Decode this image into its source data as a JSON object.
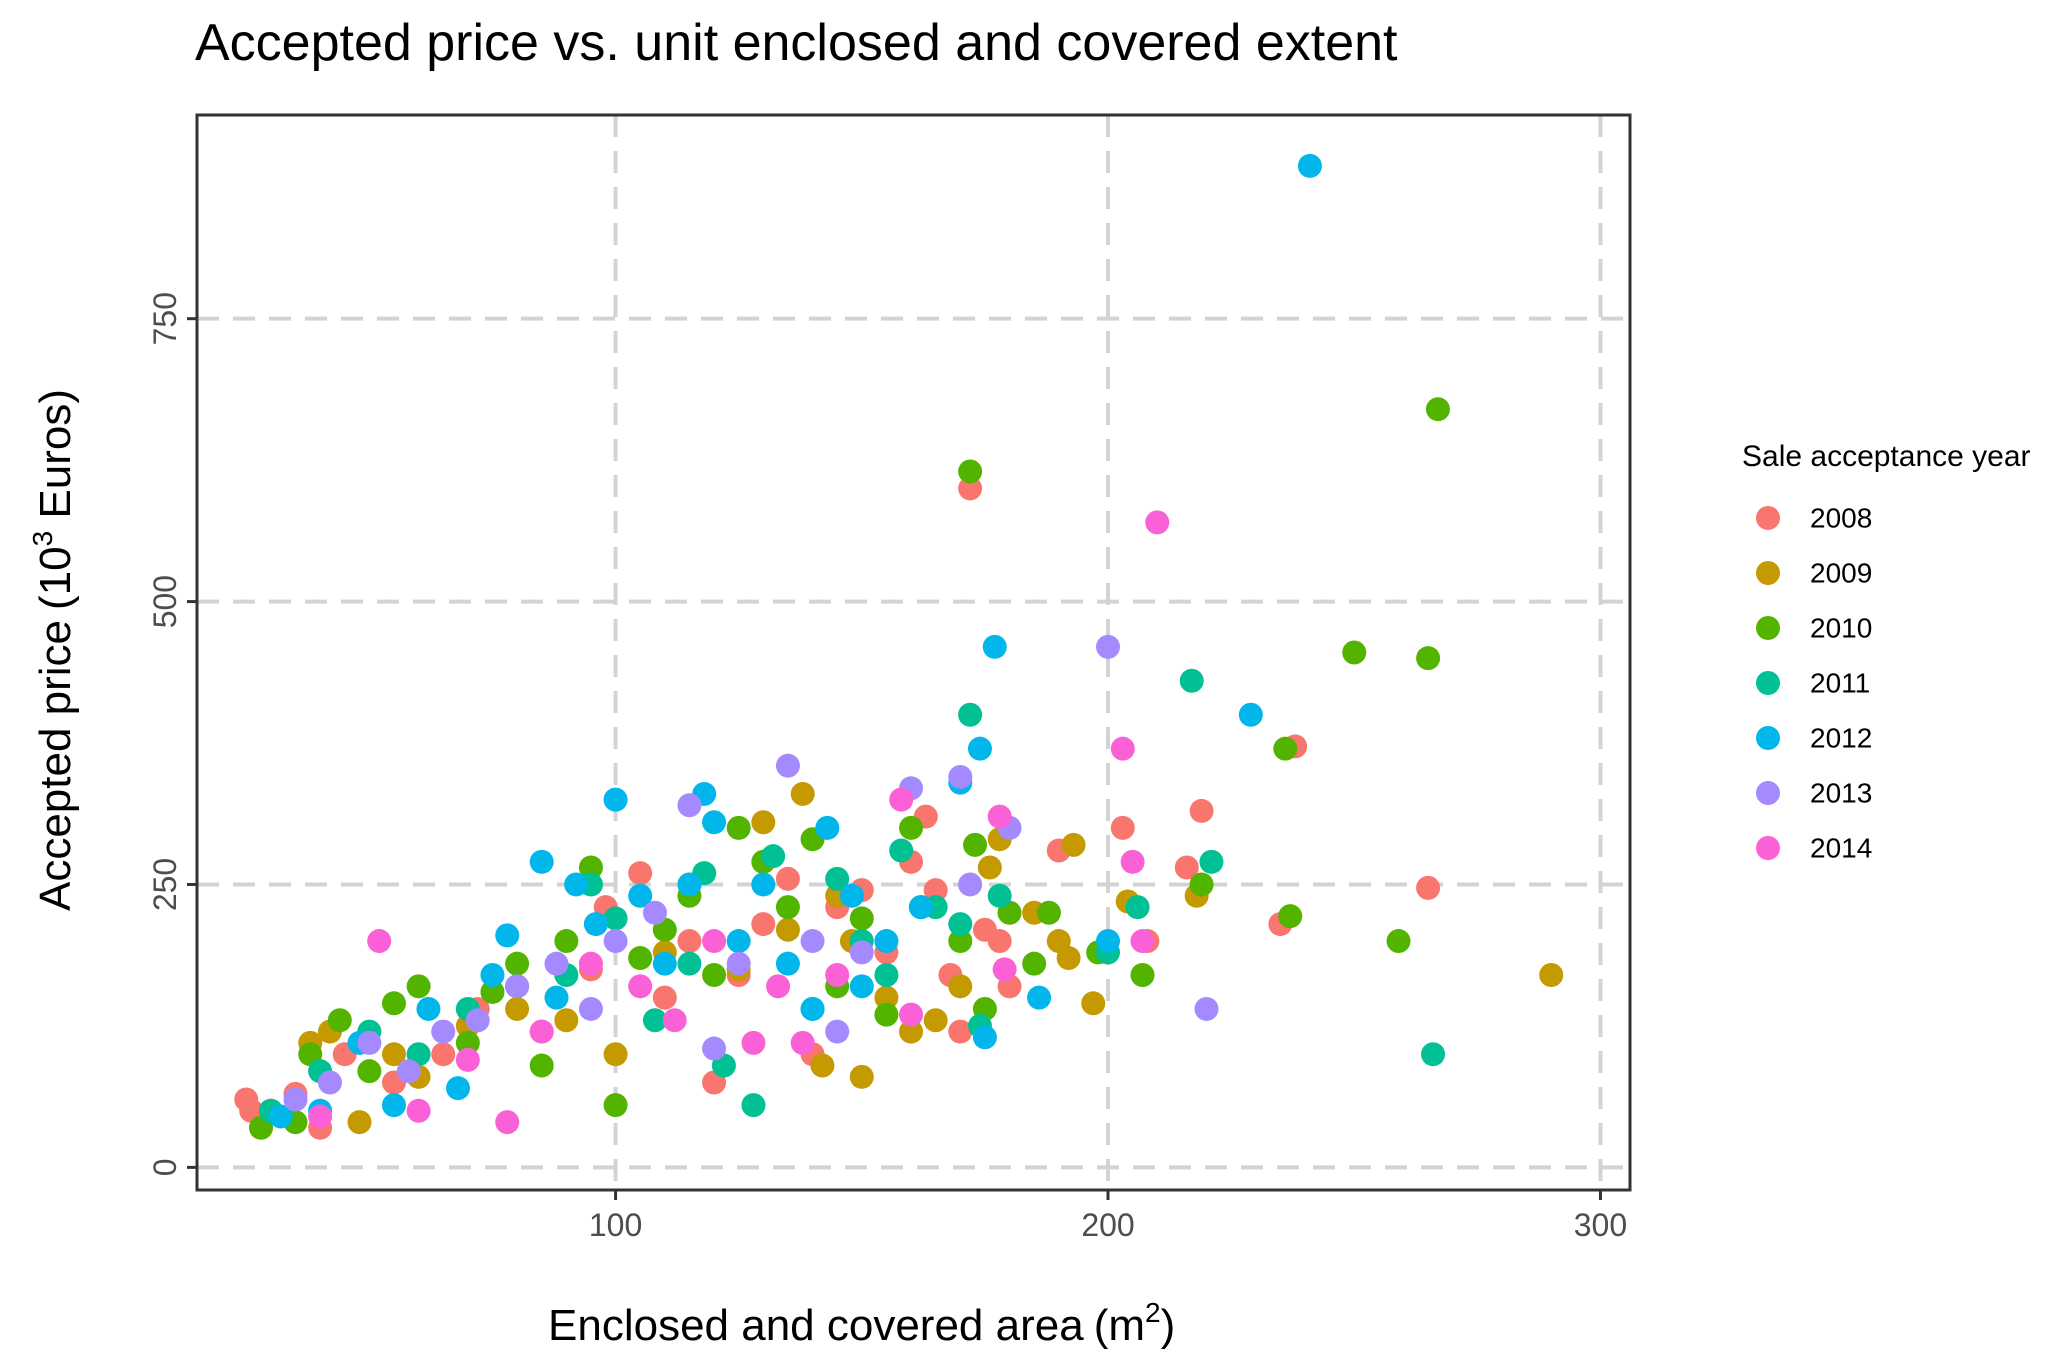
{
  "chart_data": {
    "type": "scatter",
    "title": "Accepted price vs. unit enclosed and covered extent",
    "xlabel": "Enclosed and covered area",
    "xlabel_unit_base": "m",
    "xlabel_unit_sup": "2",
    "ylabel_prefix": "Accepted price",
    "ylabel_base": "10",
    "ylabel_sup": "3",
    "ylabel_suffix": " Euros",
    "xlim": [
      15,
      306
    ],
    "ylim": [
      -20,
      930
    ],
    "x_ticks": [
      100,
      200,
      300
    ],
    "y_ticks": [
      0,
      250,
      500,
      750
    ],
    "x_tick_labels": [
      "100",
      "200",
      "300"
    ],
    "y_tick_labels": [
      "0",
      "250",
      "500",
      "750"
    ],
    "grid": true,
    "legend": {
      "title": "Sale acceptance year",
      "position": "right",
      "entries": [
        "2008",
        "2009",
        "2010",
        "2011",
        "2012",
        "2013",
        "2014"
      ]
    },
    "colors": {
      "2008": "#F8766D",
      "2009": "#C49A00",
      "2010": "#53B400",
      "2011": "#00C094",
      "2012": "#00B6EB",
      "2013": "#A58AFF",
      "2014": "#FB61D7"
    },
    "series": [
      {
        "name": "2008",
        "points": [
          [
            25,
            60
          ],
          [
            26,
            50
          ],
          [
            35,
            65
          ],
          [
            40,
            35
          ],
          [
            45,
            100
          ],
          [
            55,
            75
          ],
          [
            65,
            100
          ],
          [
            72,
            140
          ],
          [
            80,
            160
          ],
          [
            85,
            120
          ],
          [
            95,
            175
          ],
          [
            98,
            230
          ],
          [
            105,
            260
          ],
          [
            110,
            150
          ],
          [
            115,
            200
          ],
          [
            120,
            75
          ],
          [
            125,
            170
          ],
          [
            130,
            215
          ],
          [
            135,
            255
          ],
          [
            140,
            100
          ],
          [
            145,
            230
          ],
          [
            150,
            245
          ],
          [
            155,
            190
          ],
          [
            160,
            270
          ],
          [
            163,
            310
          ],
          [
            165,
            245
          ],
          [
            168,
            170
          ],
          [
            170,
            120
          ],
          [
            172,
            600
          ],
          [
            175,
            210
          ],
          [
            178,
            200
          ],
          [
            180,
            160
          ],
          [
            190,
            280
          ],
          [
            203,
            300
          ],
          [
            208,
            200
          ],
          [
            216,
            265
          ],
          [
            219,
            315
          ],
          [
            235,
            215
          ],
          [
            238,
            372
          ],
          [
            265,
            247
          ]
        ]
      },
      {
        "name": "2009",
        "points": [
          [
            30,
            50
          ],
          [
            38,
            110
          ],
          [
            42,
            120
          ],
          [
            48,
            40
          ],
          [
            55,
            100
          ],
          [
            60,
            80
          ],
          [
            70,
            125
          ],
          [
            80,
            140
          ],
          [
            90,
            130
          ],
          [
            100,
            100
          ],
          [
            110,
            190
          ],
          [
            115,
            250
          ],
          [
            125,
            175
          ],
          [
            130,
            305
          ],
          [
            135,
            210
          ],
          [
            138,
            330
          ],
          [
            142,
            90
          ],
          [
            145,
            240
          ],
          [
            148,
            200
          ],
          [
            150,
            80
          ],
          [
            155,
            150
          ],
          [
            160,
            120
          ],
          [
            165,
            130
          ],
          [
            170,
            160
          ],
          [
            176,
            265
          ],
          [
            178,
            290
          ],
          [
            185,
            225
          ],
          [
            190,
            200
          ],
          [
            192,
            185
          ],
          [
            193,
            285
          ],
          [
            197,
            145
          ],
          [
            204,
            235
          ],
          [
            218,
            240
          ],
          [
            290,
            170
          ]
        ]
      },
      {
        "name": "2010",
        "points": [
          [
            28,
            35
          ],
          [
            35,
            40
          ],
          [
            38,
            100
          ],
          [
            44,
            130
          ],
          [
            50,
            85
          ],
          [
            55,
            145
          ],
          [
            60,
            160
          ],
          [
            70,
            110
          ],
          [
            75,
            155
          ],
          [
            80,
            180
          ],
          [
            85,
            90
          ],
          [
            90,
            200
          ],
          [
            95,
            265
          ],
          [
            100,
            55
          ],
          [
            105,
            185
          ],
          [
            110,
            210
          ],
          [
            115,
            240
          ],
          [
            120,
            170
          ],
          [
            125,
            300
          ],
          [
            130,
            270
          ],
          [
            135,
            230
          ],
          [
            140,
            290
          ],
          [
            145,
            160
          ],
          [
            150,
            220
          ],
          [
            155,
            135
          ],
          [
            160,
            300
          ],
          [
            162,
            230
          ],
          [
            170,
            200
          ],
          [
            172,
            615
          ],
          [
            173,
            285
          ],
          [
            175,
            140
          ],
          [
            180,
            225
          ],
          [
            185,
            180
          ],
          [
            188,
            225
          ],
          [
            198,
            190
          ],
          [
            207,
            170
          ],
          [
            219,
            250
          ],
          [
            236,
            370
          ],
          [
            237,
            222
          ],
          [
            250,
            455
          ],
          [
            259,
            200
          ],
          [
            265,
            450
          ],
          [
            267,
            670
          ]
        ]
      },
      {
        "name": "2011",
        "points": [
          [
            30,
            50
          ],
          [
            40,
            85
          ],
          [
            50,
            120
          ],
          [
            60,
            100
          ],
          [
            70,
            140
          ],
          [
            80,
            160
          ],
          [
            90,
            170
          ],
          [
            95,
            250
          ],
          [
            100,
            220
          ],
          [
            108,
            130
          ],
          [
            115,
            180
          ],
          [
            118,
            260
          ],
          [
            122,
            90
          ],
          [
            128,
            55
          ],
          [
            132,
            275
          ],
          [
            140,
            140
          ],
          [
            145,
            255
          ],
          [
            150,
            200
          ],
          [
            155,
            170
          ],
          [
            158,
            280
          ],
          [
            165,
            230
          ],
          [
            170,
            215
          ],
          [
            172,
            400
          ],
          [
            174,
            125
          ],
          [
            178,
            240
          ],
          [
            200,
            190
          ],
          [
            206,
            230
          ],
          [
            217,
            430
          ],
          [
            221,
            270
          ],
          [
            266,
            100
          ]
        ]
      },
      {
        "name": "2012",
        "points": [
          [
            32,
            45
          ],
          [
            40,
            50
          ],
          [
            48,
            110
          ],
          [
            55,
            55
          ],
          [
            62,
            140
          ],
          [
            68,
            70
          ],
          [
            75,
            170
          ],
          [
            78,
            205
          ],
          [
            85,
            270
          ],
          [
            88,
            150
          ],
          [
            92,
            250
          ],
          [
            96,
            215
          ],
          [
            100,
            325
          ],
          [
            105,
            240
          ],
          [
            110,
            180
          ],
          [
            115,
            250
          ],
          [
            118,
            330
          ],
          [
            120,
            305
          ],
          [
            125,
            200
          ],
          [
            130,
            250
          ],
          [
            135,
            180
          ],
          [
            140,
            140
          ],
          [
            143,
            300
          ],
          [
            148,
            240
          ],
          [
            150,
            160
          ],
          [
            155,
            200
          ],
          [
            162,
            230
          ],
          [
            170,
            340
          ],
          [
            174,
            370
          ],
          [
            175,
            115
          ],
          [
            177,
            460
          ],
          [
            186,
            150
          ],
          [
            200,
            200
          ],
          [
            229,
            400
          ],
          [
            241,
            885
          ]
        ]
      },
      {
        "name": "2013",
        "points": [
          [
            35,
            60
          ],
          [
            42,
            75
          ],
          [
            50,
            110
          ],
          [
            58,
            85
          ],
          [
            65,
            120
          ],
          [
            72,
            130
          ],
          [
            80,
            160
          ],
          [
            88,
            180
          ],
          [
            95,
            140
          ],
          [
            100,
            200
          ],
          [
            108,
            225
          ],
          [
            115,
            320
          ],
          [
            120,
            105
          ],
          [
            125,
            180
          ],
          [
            135,
            355
          ],
          [
            140,
            200
          ],
          [
            145,
            120
          ],
          [
            150,
            190
          ],
          [
            160,
            335
          ],
          [
            170,
            345
          ],
          [
            172,
            250
          ],
          [
            180,
            300
          ],
          [
            200,
            460
          ],
          [
            220,
            140
          ]
        ]
      },
      {
        "name": "2014",
        "points": [
          [
            40,
            45
          ],
          [
            52,
            200
          ],
          [
            60,
            50
          ],
          [
            70,
            95
          ],
          [
            78,
            40
          ],
          [
            85,
            120
          ],
          [
            95,
            180
          ],
          [
            105,
            160
          ],
          [
            112,
            130
          ],
          [
            120,
            200
          ],
          [
            128,
            110
          ],
          [
            133,
            160
          ],
          [
            138,
            110
          ],
          [
            145,
            170
          ],
          [
            158,
            325
          ],
          [
            160,
            135
          ],
          [
            178,
            310
          ],
          [
            179,
            175
          ],
          [
            203,
            370
          ],
          [
            205,
            270
          ],
          [
            207,
            200
          ],
          [
            210,
            570
          ]
        ]
      }
    ]
  }
}
